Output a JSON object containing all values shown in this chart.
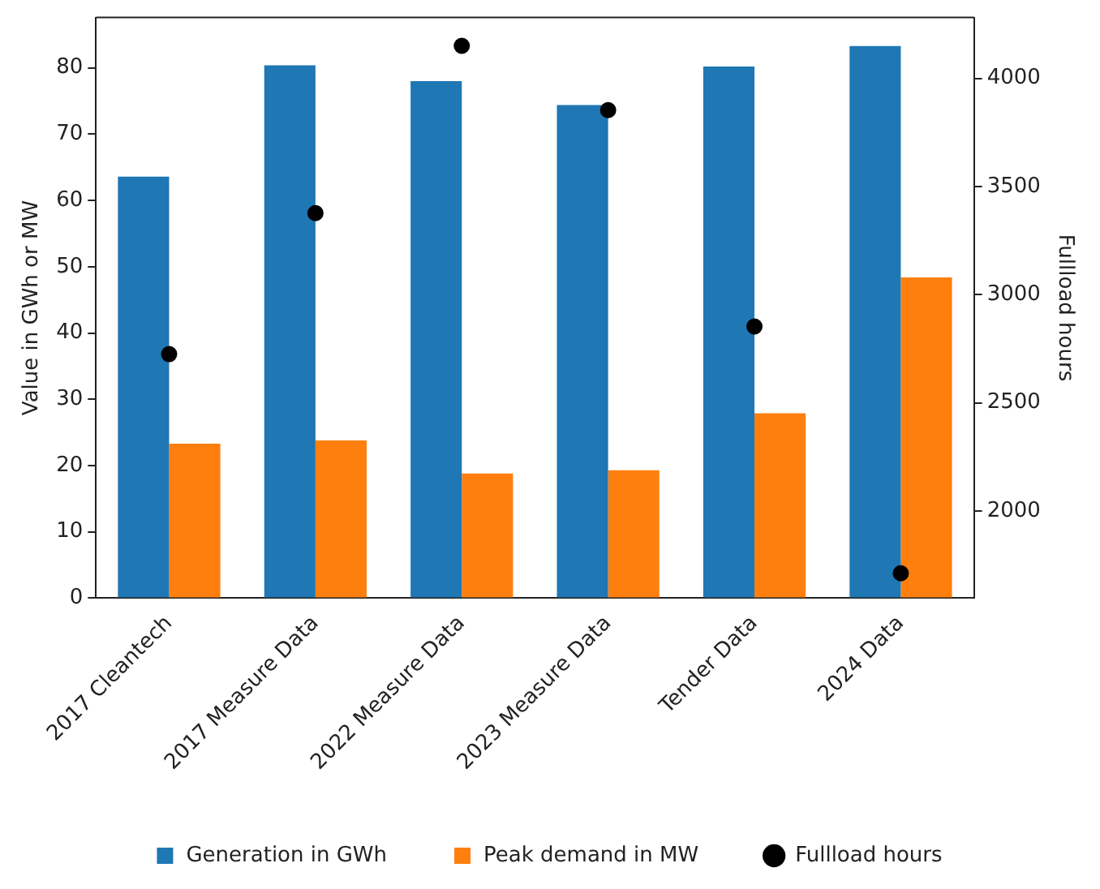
{
  "chart_data": {
    "type": "bar",
    "categories": [
      "2017 Cleantech",
      "2017 Measure Data",
      "2022 Measure Data",
      "2023 Measure Data",
      "Tender Data",
      "2024 Data"
    ],
    "ylabel": "Value in GWh or MW",
    "y2label": "Fullload hours",
    "ylim": [
      0,
      87.6
    ],
    "yticks": [
      0,
      10,
      20,
      30,
      40,
      50,
      60,
      70,
      80
    ],
    "y2lim": [
      1597,
      4281
    ],
    "y2ticks": [
      2000,
      2500,
      3000,
      3500,
      4000
    ],
    "series": [
      {
        "name": "Generation in GWh",
        "color": "#1f77b4",
        "values": [
          63.6,
          80.4,
          78.0,
          74.4,
          80.2,
          83.3
        ]
      },
      {
        "name": "Peak demand in MW",
        "color": "#ff7f0e",
        "values": [
          23.3,
          23.8,
          18.8,
          19.3,
          27.9,
          48.4
        ]
      },
      {
        "name": "Fullload hours",
        "type": "scatter",
        "axis": "y2",
        "marker": "circle",
        "color": "#000000",
        "values": [
          2725,
          3377,
          4150,
          3853,
          2853,
          1712
        ]
      }
    ],
    "grid": false,
    "legend": "bottom"
  }
}
